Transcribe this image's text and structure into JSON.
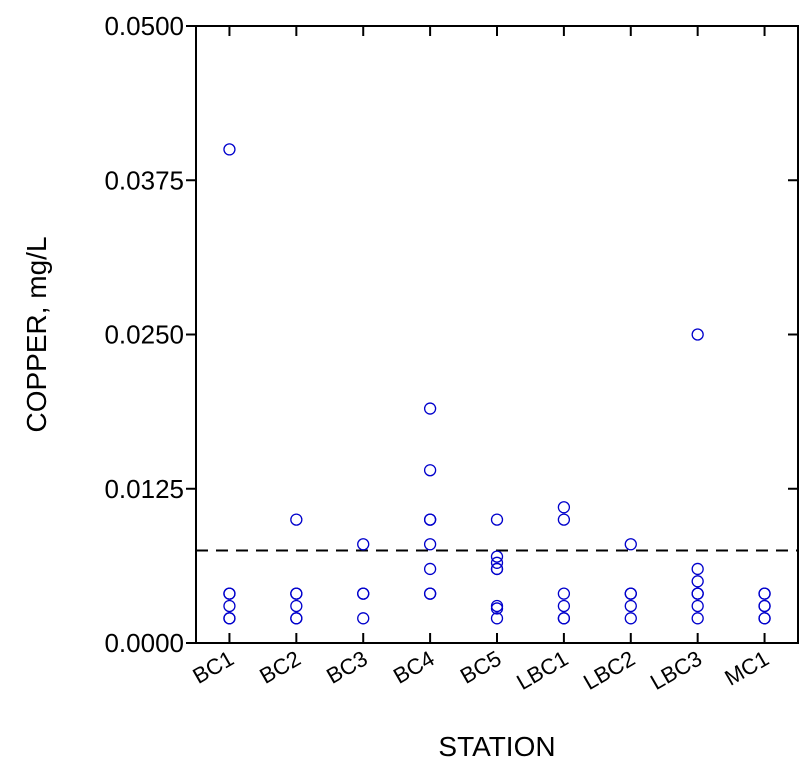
{
  "chart_data": {
    "type": "scatter",
    "title": "",
    "xlabel": "STATION",
    "ylabel": "COPPER, mg/L",
    "ylim": [
      0,
      0.05
    ],
    "y_ticks": [
      "0.0000",
      "0.0125",
      "0.0250",
      "0.0375",
      "0.0500"
    ],
    "y_tick_values": [
      0,
      0.0125,
      0.025,
      0.0375,
      0.05
    ],
    "categories": [
      "BC1",
      "BC2",
      "BC3",
      "BC4",
      "BC5",
      "LBC1",
      "LBC2",
      "LBC3",
      "MC1"
    ],
    "reference_line": 0.0075,
    "grid": false,
    "marker_color": "#0000cc",
    "series": [
      {
        "points": [
          {
            "x": "BC1",
            "y": 0.04
          },
          {
            "x": "BC1",
            "y": 0.004
          },
          {
            "x": "BC1",
            "y": 0.004
          },
          {
            "x": "BC1",
            "y": 0.003
          },
          {
            "x": "BC1",
            "y": 0.002
          },
          {
            "x": "BC1",
            "y": 0.002
          },
          {
            "x": "BC2",
            "y": 0.01
          },
          {
            "x": "BC2",
            "y": 0.004
          },
          {
            "x": "BC2",
            "y": 0.004
          },
          {
            "x": "BC2",
            "y": 0.003
          },
          {
            "x": "BC2",
            "y": 0.002
          },
          {
            "x": "BC2",
            "y": 0.002
          },
          {
            "x": "BC3",
            "y": 0.008
          },
          {
            "x": "BC3",
            "y": 0.004
          },
          {
            "x": "BC3",
            "y": 0.004
          },
          {
            "x": "BC3",
            "y": 0.002
          },
          {
            "x": "BC4",
            "y": 0.019
          },
          {
            "x": "BC4",
            "y": 0.014
          },
          {
            "x": "BC4",
            "y": 0.01
          },
          {
            "x": "BC4",
            "y": 0.01
          },
          {
            "x": "BC4",
            "y": 0.008
          },
          {
            "x": "BC4",
            "y": 0.006
          },
          {
            "x": "BC4",
            "y": 0.004
          },
          {
            "x": "BC4",
            "y": 0.004
          },
          {
            "x": "BC5",
            "y": 0.01
          },
          {
            "x": "BC5",
            "y": 0.007
          },
          {
            "x": "BC5",
            "y": 0.0065
          },
          {
            "x": "BC5",
            "y": 0.006
          },
          {
            "x": "BC5",
            "y": 0.006
          },
          {
            "x": "BC5",
            "y": 0.003
          },
          {
            "x": "BC5",
            "y": 0.0028
          },
          {
            "x": "BC5",
            "y": 0.002
          },
          {
            "x": "LBC1",
            "y": 0.011
          },
          {
            "x": "LBC1",
            "y": 0.01
          },
          {
            "x": "LBC1",
            "y": 0.004
          },
          {
            "x": "LBC1",
            "y": 0.003
          },
          {
            "x": "LBC1",
            "y": 0.002
          },
          {
            "x": "LBC1",
            "y": 0.002
          },
          {
            "x": "LBC2",
            "y": 0.008
          },
          {
            "x": "LBC2",
            "y": 0.004
          },
          {
            "x": "LBC2",
            "y": 0.004
          },
          {
            "x": "LBC2",
            "y": 0.003
          },
          {
            "x": "LBC2",
            "y": 0.002
          },
          {
            "x": "LBC3",
            "y": 0.025
          },
          {
            "x": "LBC3",
            "y": 0.006
          },
          {
            "x": "LBC3",
            "y": 0.005
          },
          {
            "x": "LBC3",
            "y": 0.004
          },
          {
            "x": "LBC3",
            "y": 0.004
          },
          {
            "x": "LBC3",
            "y": 0.003
          },
          {
            "x": "LBC3",
            "y": 0.002
          },
          {
            "x": "MC1",
            "y": 0.004
          },
          {
            "x": "MC1",
            "y": 0.004
          },
          {
            "x": "MC1",
            "y": 0.003
          },
          {
            "x": "MC1",
            "y": 0.003
          },
          {
            "x": "MC1",
            "y": 0.002
          },
          {
            "x": "MC1",
            "y": 0.002
          }
        ]
      }
    ]
  }
}
